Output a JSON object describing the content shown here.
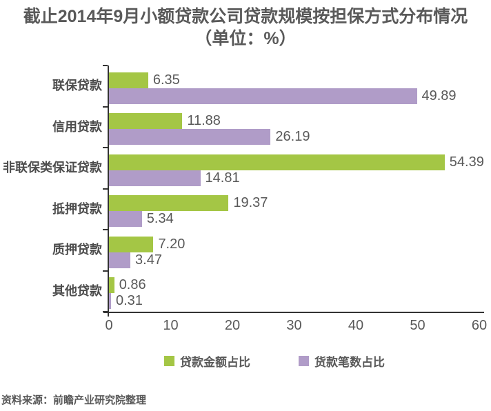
{
  "chart_data": {
    "type": "bar",
    "orientation": "horizontal",
    "title": "截止2014年9月小额贷款公司贷款规模按担保方式分布情况",
    "subtitle": "（单位：%）",
    "unit": "%",
    "categories": [
      "联保贷款",
      "信用贷款",
      "非联保类保证贷款",
      "抵押贷款",
      "质押贷款",
      "其他贷款"
    ],
    "series": [
      {
        "name": "贷款金额占比",
        "color": "#a4c645",
        "values": [
          6.35,
          11.88,
          54.39,
          19.37,
          7.2,
          0.86
        ],
        "labels": [
          "6.35",
          "11.88",
          "54.39",
          "19.37",
          "7.20",
          "0.86"
        ]
      },
      {
        "name": "货款笔数占比",
        "color": "#b09cc8",
        "values": [
          49.89,
          26.19,
          14.81,
          5.34,
          3.47,
          0.31
        ],
        "labels": [
          "49.89",
          "26.19",
          "14.81",
          "5.34",
          "3.47",
          "0.31"
        ]
      }
    ],
    "xlim": [
      0,
      60
    ],
    "x_ticks": [
      0,
      10,
      20,
      30,
      40,
      50,
      60
    ],
    "grid": false,
    "legend_position": "bottom"
  },
  "source_note": "资料来源：前瞻产业研究院整理",
  "colors": {
    "axis": "#333333",
    "title_text": "#595959",
    "category_text": "#4d4d4d",
    "value_text": "#595959",
    "background": "#ffffff"
  }
}
